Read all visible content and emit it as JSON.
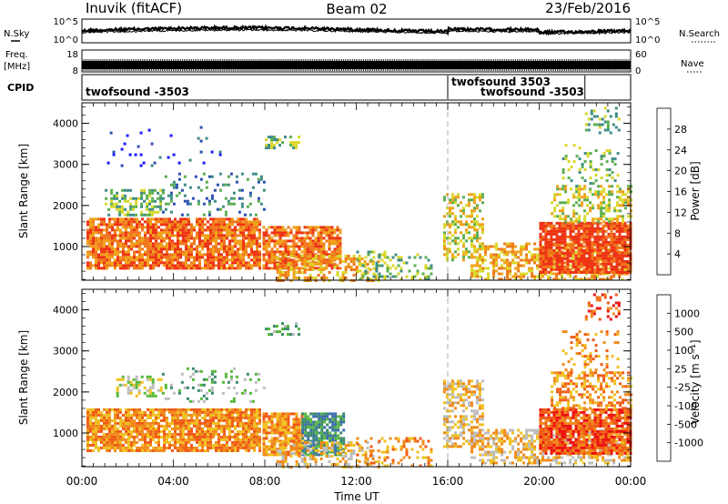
{
  "header": {
    "station": "Inuvik (fitACF)",
    "beam": "Beam 02",
    "date": "23/Feb/2016"
  },
  "summary_panels": {
    "nsky_label": "N.Sky",
    "nsearch_label": "N.Search",
    "noise_ticks": [
      "10^5",
      "10^0"
    ],
    "freq_label_line1": "Freq.",
    "freq_label_line2": "[MHz]",
    "freq_ticks": [
      "18",
      "8"
    ],
    "nave_label": "Nave",
    "nave_ticks": [
      "60",
      "0"
    ],
    "cpid_label": "CPID",
    "cpid_segments": [
      {
        "name": "twofsound -3503",
        "start_h": 0,
        "end_h": 16,
        "row": 2
      },
      {
        "name": "twofsound 3503",
        "start_h": 16,
        "end_h": 22,
        "row": 1
      },
      {
        "name": "twofsound -3503",
        "start_h": 16,
        "end_h": 24,
        "row": 2
      }
    ]
  },
  "chart_data": [
    {
      "type": "heatmap",
      "name": "power",
      "ylabel": "Slant Range [km]",
      "xlabel": "Time UT",
      "xlim_hours": [
        0,
        24
      ],
      "ylim": [
        180,
        4500
      ],
      "yticks": [
        1000,
        2000,
        3000,
        4000
      ],
      "colorbar": {
        "label": "Power [dB]",
        "ticks": [
          "4",
          "8",
          "12",
          "16",
          "20",
          "24",
          "28"
        ],
        "colors": [
          "#1a1aff",
          "#2b4fb0",
          "#3f8c88",
          "#5cae4f",
          "#d8d829",
          "#f0a018",
          "#f0761a",
          "#ee3214"
        ]
      },
      "echo_regions": [
        {
          "t0": 0.2,
          "t1": 7.8,
          "r0": 500,
          "r1": 1700,
          "level": 6,
          "density": 0.85
        },
        {
          "t0": 1.0,
          "t1": 3.5,
          "r0": 1800,
          "r1": 2400,
          "level": 3,
          "density": 0.5
        },
        {
          "t0": 3.5,
          "t1": 8.0,
          "r0": 1800,
          "r1": 2800,
          "level": 2,
          "density": 0.15
        },
        {
          "t0": 7.9,
          "t1": 11.3,
          "r0": 500,
          "r1": 1500,
          "level": 6,
          "density": 0.8
        },
        {
          "t0": 8.5,
          "t1": 13.0,
          "r0": 200,
          "r1": 800,
          "level": 5,
          "density": 0.45
        },
        {
          "t0": 12.0,
          "t1": 15.3,
          "r0": 200,
          "r1": 900,
          "level": 3,
          "density": 0.25
        },
        {
          "t0": 8.0,
          "t1": 9.5,
          "r0": 3400,
          "r1": 3700,
          "level": 3,
          "density": 0.4
        },
        {
          "t0": 0.5,
          "t1": 6.5,
          "r0": 3000,
          "r1": 4000,
          "level": 1,
          "density": 0.04
        },
        {
          "t0": 15.8,
          "t1": 17.5,
          "r0": 700,
          "r1": 2300,
          "level": 4,
          "density": 0.5
        },
        {
          "t0": 17.0,
          "t1": 24.0,
          "r0": 200,
          "r1": 1100,
          "level": 5,
          "density": 0.55
        },
        {
          "t0": 20.0,
          "t1": 24.0,
          "r0": 400,
          "r1": 1600,
          "level": 7,
          "density": 0.85
        },
        {
          "t0": 20.5,
          "t1": 24.0,
          "r0": 1600,
          "r1": 2500,
          "level": 4,
          "density": 0.45
        },
        {
          "t0": 21.0,
          "t1": 23.5,
          "r0": 2500,
          "r1": 3500,
          "level": 3,
          "density": 0.2
        },
        {
          "t0": 22.0,
          "t1": 23.5,
          "r0": 3800,
          "r1": 4400,
          "level": 3,
          "density": 0.3
        }
      ]
    },
    {
      "type": "heatmap",
      "name": "velocity",
      "ylabel": "Slant Range [km]",
      "xlabel": "Time UT",
      "xlim_hours": [
        0,
        24
      ],
      "ylim": [
        180,
        4500
      ],
      "yticks": [
        1000,
        2000,
        3000,
        4000
      ],
      "xticks": [
        "00:00",
        "04:00",
        "08:00",
        "12:00",
        "16:00",
        "20:00",
        "00:00"
      ],
      "colorbar": {
        "label": "Velocity [m s⁻¹]",
        "ticks": [
          "1000",
          "500",
          "100",
          "25",
          "-25",
          "-100",
          "-500",
          "-1000"
        ],
        "colors": [
          "#2038c0",
          "#3a6cae",
          "#3a8a6a",
          "#55b83a",
          "#bdbdbd",
          "#f0c020",
          "#f08a1a",
          "#f05a15",
          "#ee1010"
        ]
      },
      "echo_regions": [
        {
          "t0": 0.2,
          "t1": 7.8,
          "r0": 600,
          "r1": 1600,
          "level": 6,
          "density": 0.85
        },
        {
          "t0": 1.5,
          "t1": 3.5,
          "r0": 1900,
          "r1": 2400,
          "level": 4,
          "density": 0.5
        },
        {
          "t0": 3.5,
          "t1": 8.0,
          "r0": 1800,
          "r1": 2600,
          "level": 3,
          "density": 0.15
        },
        {
          "t0": 7.9,
          "t1": 9.6,
          "r0": 500,
          "r1": 1500,
          "level": 6,
          "density": 0.8
        },
        {
          "t0": 9.6,
          "t1": 11.5,
          "r0": 500,
          "r1": 1500,
          "level": 2,
          "density": 0.8
        },
        {
          "t0": 8.5,
          "t1": 13.0,
          "r0": 200,
          "r1": 800,
          "level": 5,
          "density": 0.4
        },
        {
          "t0": 12.0,
          "t1": 15.3,
          "r0": 200,
          "r1": 900,
          "level": 6,
          "density": 0.25
        },
        {
          "t0": 8.0,
          "t1": 9.5,
          "r0": 3400,
          "r1": 3700,
          "level": 3,
          "density": 0.4
        },
        {
          "t0": 15.8,
          "t1": 17.5,
          "r0": 700,
          "r1": 2300,
          "level": 5,
          "density": 0.5
        },
        {
          "t0": 17.0,
          "t1": 24.0,
          "r0": 300,
          "r1": 1100,
          "level": 5,
          "density": 0.55
        },
        {
          "t0": 20.0,
          "t1": 24.0,
          "r0": 500,
          "r1": 1600,
          "level": 7,
          "density": 0.85
        },
        {
          "t0": 20.5,
          "t1": 24.0,
          "r0": 1600,
          "r1": 2500,
          "level": 6,
          "density": 0.45
        },
        {
          "t0": 21.0,
          "t1": 23.5,
          "r0": 2500,
          "r1": 3500,
          "level": 6,
          "density": 0.2
        },
        {
          "t0": 22.0,
          "t1": 23.5,
          "r0": 3800,
          "r1": 4400,
          "level": 7,
          "density": 0.3
        }
      ]
    }
  ]
}
